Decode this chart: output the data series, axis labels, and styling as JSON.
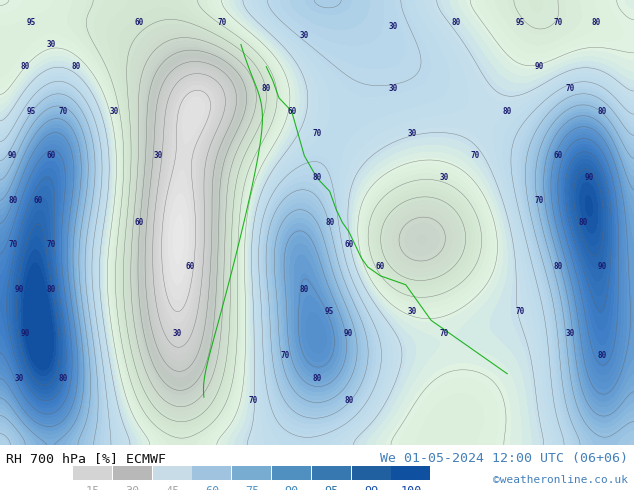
{
  "title_left": "RH 700 hPa [%] ECMWF",
  "title_right": "We 01-05-2024 12:00 UTC (06+06)",
  "copyright": "©weatheronline.co.uk",
  "legend_values": [
    15,
    30,
    45,
    60,
    75,
    90,
    95,
    99,
    100
  ],
  "legend_colors": [
    "#d4d4d4",
    "#b8b8b8",
    "#c8dce8",
    "#a0c4e0",
    "#78acd0",
    "#5090c0",
    "#3878b0",
    "#2060a0",
    "#1050a0"
  ],
  "bg_color": "#ffffff",
  "text_color_left": "#101010",
  "text_color_right": "#4480bb",
  "font_size_title": 9.5,
  "font_size_legend": 8.5,
  "font_size_copyright": 8,
  "figsize": [
    6.34,
    4.9
  ],
  "dpi": 100,
  "legend_label_colors": [
    "#aaaaaa",
    "#aaaaaa",
    "#aaaaaa",
    "#5599cc",
    "#5599cc",
    "#4488bb",
    "#3377aa",
    "#2255aa",
    "#1144aa"
  ],
  "map_colors": {
    "very_low": "#f0f0f0",
    "low": "#d8d8d8",
    "low_mid": "#c0c8d0",
    "mid": "#b0c4d8",
    "mid_high": "#90b0d0",
    "high": "#6090c0",
    "very_high": "#4070b0",
    "extreme": "#2050a0"
  }
}
